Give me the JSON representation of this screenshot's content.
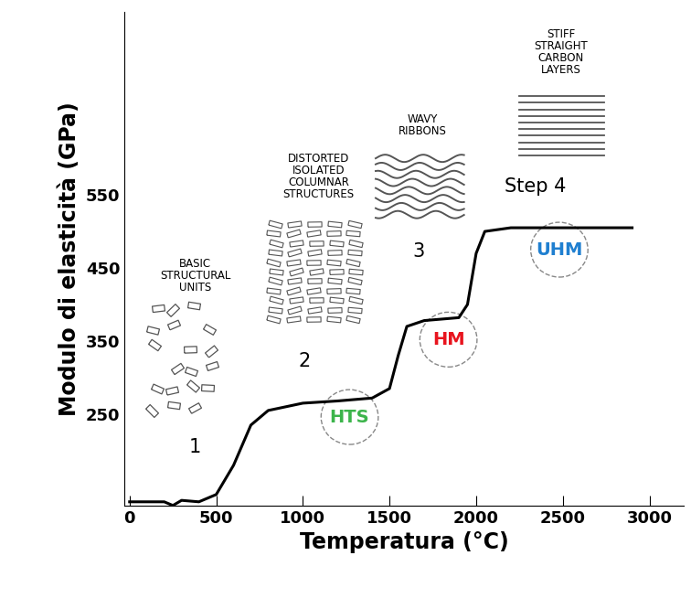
{
  "chart_data": {
    "type": "line",
    "x_label": "Temperatura (°C)",
    "y_label": "Modulo di elasticità (GPa)",
    "x": [
      0,
      200,
      250,
      300,
      400,
      500,
      600,
      700,
      800,
      1000,
      1200,
      1400,
      1500,
      1550,
      1600,
      1700,
      1900,
      1950,
      2000,
      2050,
      2200,
      2500,
      2900
    ],
    "values": [
      130,
      130,
      125,
      132,
      130,
      140,
      180,
      235,
      255,
      265,
      268,
      272,
      285,
      330,
      370,
      378,
      382,
      400,
      470,
      500,
      505,
      505,
      505
    ],
    "color": "#000000",
    "xlim": [
      -30,
      3200
    ],
    "ylim": [
      125,
      800
    ],
    "xticks": [
      0,
      500,
      1000,
      1500,
      2000,
      2500,
      3000
    ],
    "yticks": [
      250,
      350,
      450,
      550
    ],
    "annotations": [
      {
        "text": "BASIC\nSTRUCTURAL\nUNITS"
      },
      {
        "text": "DISTORTED\nISOLATED\nCOLUMNAR\nSTRUCTURES"
      },
      {
        "text": "WAVY\nRIBBONS"
      },
      {
        "text": "STIFF\nSTRAIGHT\nCARBON\nLAYERS"
      },
      {
        "text": "1"
      },
      {
        "text": "2"
      },
      {
        "text": "3"
      },
      {
        "text": "Step 4"
      },
      {
        "text": "HTS",
        "color": "#3cb44b"
      },
      {
        "text": "HM",
        "color": "#e8141e"
      },
      {
        "text": "UHM",
        "color": "#1f7fd0"
      }
    ]
  }
}
